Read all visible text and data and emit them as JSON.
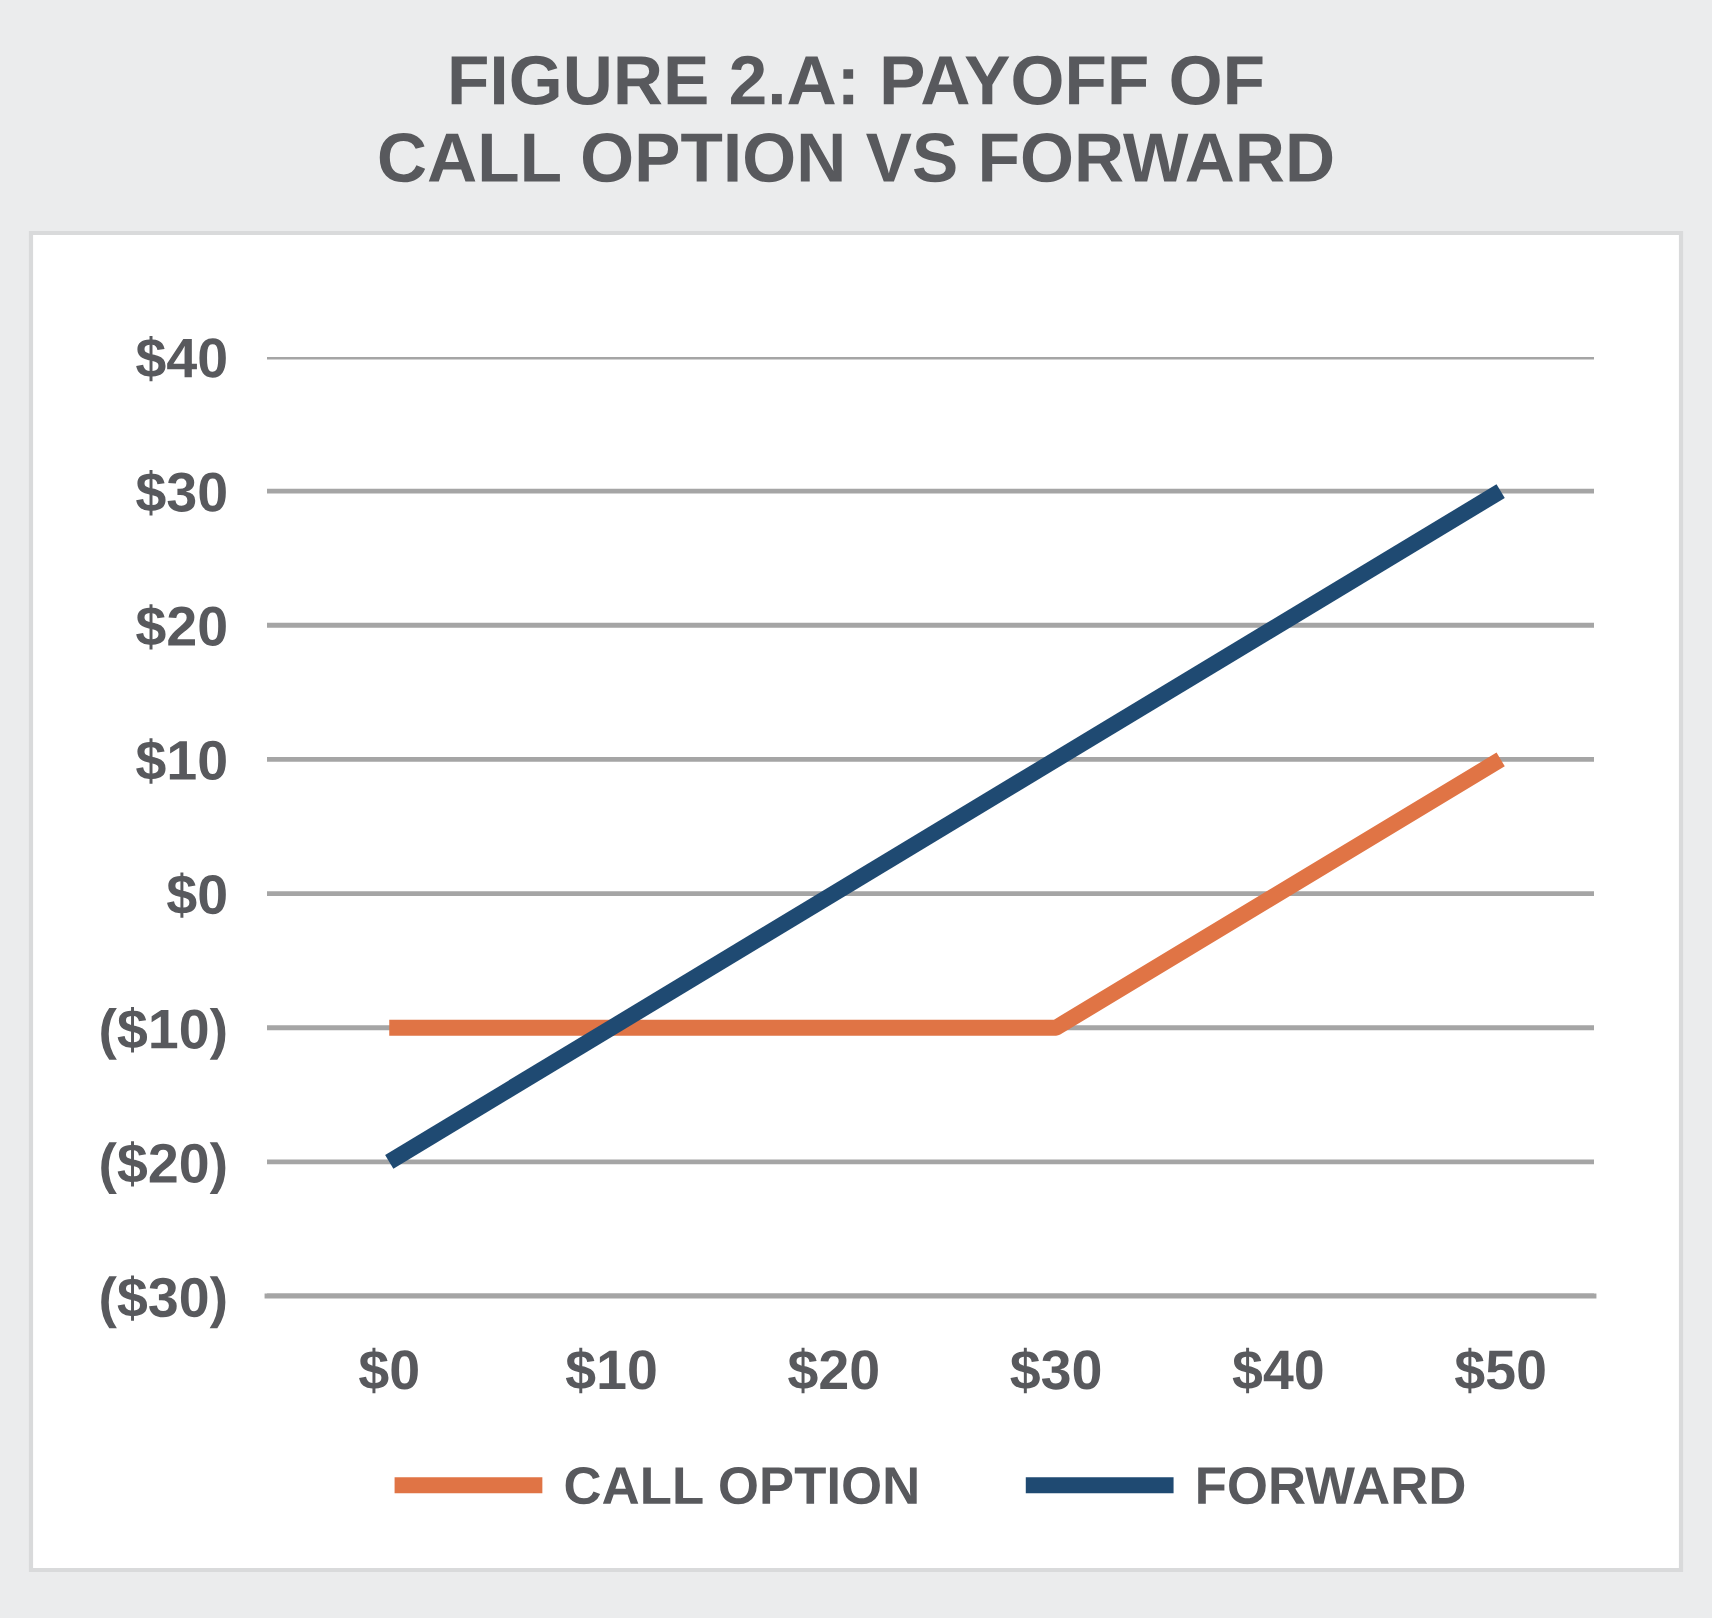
{
  "chart_data": {
    "type": "line",
    "title": "FIGURE 2.A: PAYOFF OF\nCALL OPTION VS FORWARD",
    "series": [
      {
        "name": "CALL OPTION",
        "color": "#e07445",
        "x": [
          0,
          30,
          50
        ],
        "values": [
          -10,
          -10,
          10
        ]
      },
      {
        "name": "FORWARD",
        "color": "#1f4a72",
        "x": [
          0,
          50
        ],
        "values": [
          -20,
          30
        ]
      }
    ],
    "xlim": [
      -5.5,
      54.2
    ],
    "xticks": [
      {
        "value": 0,
        "label": "$0"
      },
      {
        "value": 10,
        "label": "$10"
      },
      {
        "value": 20,
        "label": "$20"
      },
      {
        "value": 30,
        "label": "$30"
      },
      {
        "value": 40,
        "label": "$40"
      },
      {
        "value": 50,
        "label": "$50"
      }
    ],
    "ylim": [
      -30,
      40
    ],
    "yticks": [
      {
        "value": -30,
        "label": "($30)"
      },
      {
        "value": -20,
        "label": "($20)"
      },
      {
        "value": -10,
        "label": "($10)"
      },
      {
        "value": 0,
        "label": "$0"
      },
      {
        "value": 10,
        "label": "$10"
      },
      {
        "value": 20,
        "label": "$20"
      },
      {
        "value": 30,
        "label": "$30"
      },
      {
        "value": 40,
        "label": "$40"
      }
    ],
    "grid": "y",
    "legend": "bottom",
    "marker": "none",
    "line_style": "solid"
  }
}
